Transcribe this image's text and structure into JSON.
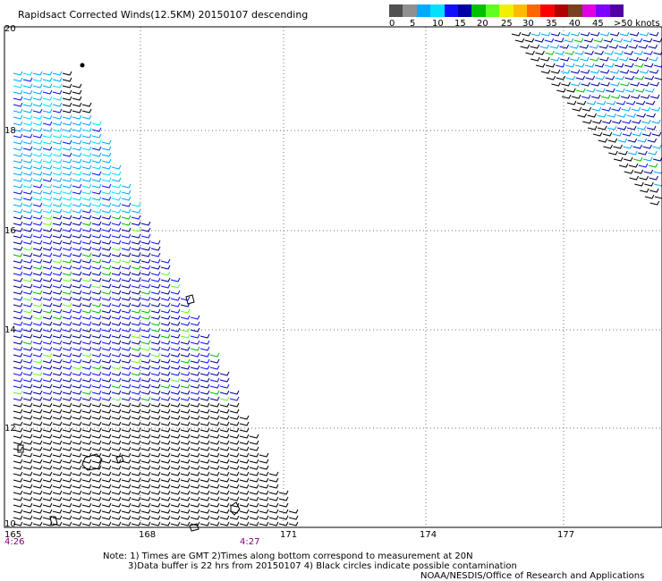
{
  "title": "Rapidsact Corrected Winds(12.5KM) 20150107 descending",
  "scale": {
    "colors": [
      "#505050",
      "#909090",
      "#00aaff",
      "#00e0ff",
      "#1010ff",
      "#0000a0",
      "#00c000",
      "#60ff20",
      "#f0f000",
      "#ffbb00",
      "#ff6600",
      "#ff0000",
      "#b00000",
      "#7a4020",
      "#e000e0",
      "#8000ff",
      "#5000a0"
    ],
    "labels": [
      "0",
      "5",
      "10",
      "15",
      "20",
      "25",
      "30",
      "35",
      "40",
      "45",
      ">50 knots"
    ]
  },
  "axes": {
    "lat_labels": [
      "20",
      "18",
      "16",
      "14",
      "12",
      "10"
    ],
    "lon_labels": [
      "165",
      "168",
      "171",
      "174",
      "177"
    ],
    "time_labels": [
      "4:26",
      "4:27"
    ]
  },
  "notes": [
    "Note: 1) Times are GMT 2)Times along bottom correspond to measurement at 20N",
    "3)Data buffer is 22 hrs from 20150107 4) Black circles indicate possible contamination",
    "NOAA/NESDIS/Office of Research and Applications"
  ]
}
